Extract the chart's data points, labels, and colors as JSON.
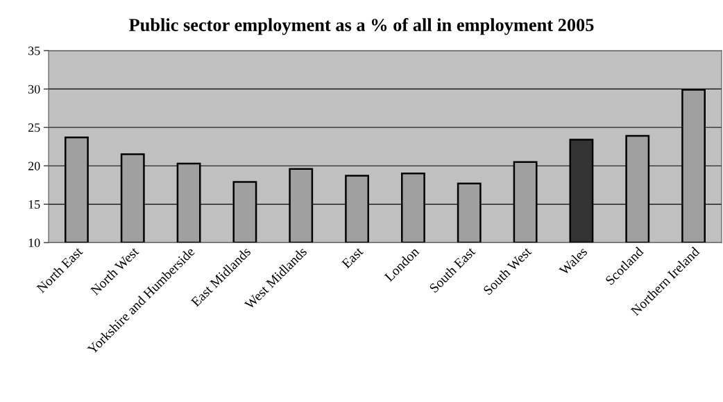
{
  "chart_data": {
    "type": "bar",
    "title": "Public sector employment as a % of all in employment 2005",
    "categories": [
      "North East",
      "North West",
      "Yorkshire and Humberside",
      "East Midlands",
      "West Midlands",
      "East",
      "London",
      "South East",
      "South West",
      "Wales",
      "Scotland",
      "Northern Ireland"
    ],
    "values": [
      23.7,
      21.5,
      20.3,
      17.9,
      19.6,
      18.7,
      19.0,
      17.7,
      20.5,
      23.4,
      23.9,
      29.9
    ],
    "colors": [
      "#a0a0a0",
      "#a0a0a0",
      "#a0a0a0",
      "#a0a0a0",
      "#a0a0a0",
      "#a0a0a0",
      "#a0a0a0",
      "#a0a0a0",
      "#a0a0a0",
      "#333333",
      "#a0a0a0",
      "#a0a0a0"
    ],
    "ylim": [
      10,
      35
    ],
    "yticks": [
      10,
      15,
      20,
      25,
      30,
      35
    ],
    "grid": "y",
    "legend": false
  }
}
